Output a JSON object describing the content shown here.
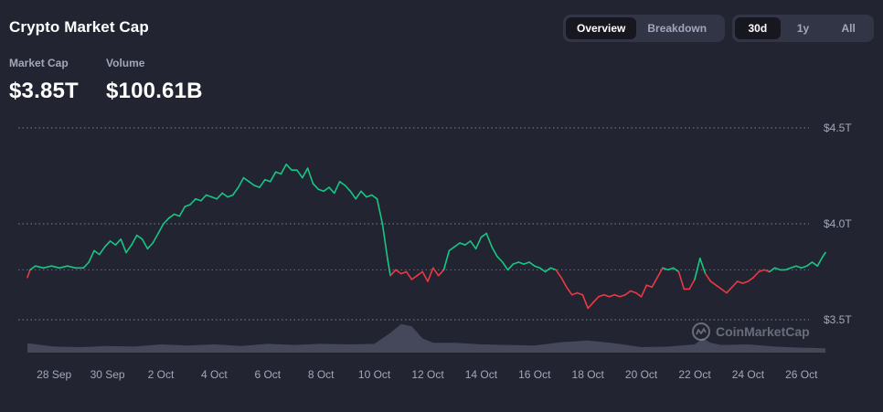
{
  "header": {
    "title": "Crypto Market Cap",
    "view_tabs": [
      {
        "label": "Overview",
        "active": true
      },
      {
        "label": "Breakdown",
        "active": false
      }
    ],
    "range_tabs": [
      {
        "label": "30d",
        "active": true
      },
      {
        "label": "1y",
        "active": false
      },
      {
        "label": "All",
        "active": false
      }
    ]
  },
  "stats": {
    "market_cap_label": "Market Cap",
    "market_cap_value": "$3.85T",
    "volume_label": "Volume",
    "volume_value": "$100.61B"
  },
  "watermark": {
    "text": "CoinMarketCap",
    "icon": "coinmarketcap-logo-icon"
  },
  "colors": {
    "background": "#222531",
    "up": "#16c784",
    "down": "#ea3943",
    "grid": "#a1a7bb",
    "axis_text": "#a1a7bb",
    "volume_fill": "#4a4f61"
  },
  "chart_data": {
    "type": "line",
    "title": "",
    "xlabel": "",
    "ylabel": "",
    "y_scale_unit": "trillion USD",
    "ylim": [
      3.5,
      4.5
    ],
    "y_ticks": [
      {
        "value": 4.5,
        "label": "$4.5T"
      },
      {
        "value": 4.0,
        "label": "$4.0T"
      },
      {
        "value": 3.5,
        "label": "$3.5T"
      }
    ],
    "x_ticks": [
      {
        "day": 1,
        "label": "28 Sep"
      },
      {
        "day": 3,
        "label": "30 Sep"
      },
      {
        "day": 5,
        "label": "2 Oct"
      },
      {
        "day": 7,
        "label": "4 Oct"
      },
      {
        "day": 9,
        "label": "6 Oct"
      },
      {
        "day": 11,
        "label": "8 Oct"
      },
      {
        "day": 13,
        "label": "10 Oct"
      },
      {
        "day": 15,
        "label": "12 Oct"
      },
      {
        "day": 17,
        "label": "14 Oct"
      },
      {
        "day": 19,
        "label": "16 Oct"
      },
      {
        "day": 21,
        "label": "18 Oct"
      },
      {
        "day": 23,
        "label": "20 Oct"
      },
      {
        "day": 25,
        "label": "22 Oct"
      },
      {
        "day": 27,
        "label": "24 Oct"
      },
      {
        "day": 29,
        "label": "26 Oct"
      }
    ],
    "x_range": [
      -0.5,
      30.0
    ],
    "baseline": 3.76,
    "grid": true,
    "series": [
      {
        "values": [
          [
            0.0,
            3.72
          ],
          [
            0.1,
            3.76
          ],
          [
            0.3,
            3.78
          ],
          [
            0.6,
            3.77
          ],
          [
            0.9,
            3.78
          ],
          [
            1.2,
            3.77
          ],
          [
            1.5,
            3.78
          ],
          [
            1.8,
            3.77
          ],
          [
            2.1,
            3.77
          ],
          [
            2.3,
            3.8
          ],
          [
            2.5,
            3.86
          ],
          [
            2.7,
            3.84
          ],
          [
            2.9,
            3.88
          ],
          [
            3.1,
            3.91
          ],
          [
            3.3,
            3.89
          ],
          [
            3.5,
            3.92
          ],
          [
            3.7,
            3.85
          ],
          [
            3.9,
            3.89
          ],
          [
            4.1,
            3.94
          ],
          [
            4.3,
            3.92
          ],
          [
            4.5,
            3.87
          ],
          [
            4.7,
            3.9
          ],
          [
            4.9,
            3.95
          ],
          [
            5.1,
            4.0
          ],
          [
            5.3,
            4.03
          ],
          [
            5.5,
            4.05
          ],
          [
            5.7,
            4.04
          ],
          [
            5.9,
            4.09
          ],
          [
            6.1,
            4.1
          ],
          [
            6.3,
            4.13
          ],
          [
            6.5,
            4.12
          ],
          [
            6.7,
            4.15
          ],
          [
            6.9,
            4.14
          ],
          [
            7.1,
            4.13
          ],
          [
            7.3,
            4.16
          ],
          [
            7.5,
            4.14
          ],
          [
            7.7,
            4.15
          ],
          [
            7.9,
            4.19
          ],
          [
            8.1,
            4.24
          ],
          [
            8.3,
            4.22
          ],
          [
            8.5,
            4.2
          ],
          [
            8.7,
            4.19
          ],
          [
            8.9,
            4.23
          ],
          [
            9.1,
            4.22
          ],
          [
            9.3,
            4.27
          ],
          [
            9.5,
            4.26
          ],
          [
            9.7,
            4.31
          ],
          [
            9.9,
            4.28
          ],
          [
            10.1,
            4.28
          ],
          [
            10.3,
            4.24
          ],
          [
            10.5,
            4.29
          ],
          [
            10.7,
            4.21
          ],
          [
            10.9,
            4.18
          ],
          [
            11.1,
            4.17
          ],
          [
            11.3,
            4.19
          ],
          [
            11.5,
            4.16
          ],
          [
            11.7,
            4.22
          ],
          [
            11.9,
            4.2
          ],
          [
            12.1,
            4.17
          ],
          [
            12.3,
            4.13
          ],
          [
            12.5,
            4.17
          ],
          [
            12.7,
            4.14
          ],
          [
            12.9,
            4.15
          ],
          [
            13.1,
            4.13
          ],
          [
            13.3,
            4.0
          ],
          [
            13.5,
            3.81
          ],
          [
            13.6,
            3.73
          ],
          [
            13.8,
            3.76
          ],
          [
            14.0,
            3.74
          ],
          [
            14.2,
            3.75
          ],
          [
            14.4,
            3.71
          ],
          [
            14.6,
            3.73
          ],
          [
            14.8,
            3.75
          ],
          [
            15.0,
            3.7
          ],
          [
            15.2,
            3.77
          ],
          [
            15.4,
            3.73
          ],
          [
            15.6,
            3.76
          ],
          [
            15.8,
            3.86
          ],
          [
            16.0,
            3.88
          ],
          [
            16.2,
            3.9
          ],
          [
            16.4,
            3.89
          ],
          [
            16.6,
            3.91
          ],
          [
            16.8,
            3.87
          ],
          [
            17.0,
            3.93
          ],
          [
            17.2,
            3.95
          ],
          [
            17.4,
            3.88
          ],
          [
            17.6,
            3.83
          ],
          [
            17.8,
            3.8
          ],
          [
            18.0,
            3.76
          ],
          [
            18.2,
            3.79
          ],
          [
            18.4,
            3.8
          ],
          [
            18.6,
            3.79
          ],
          [
            18.8,
            3.8
          ],
          [
            19.0,
            3.78
          ],
          [
            19.2,
            3.77
          ],
          [
            19.4,
            3.75
          ],
          [
            19.6,
            3.77
          ],
          [
            19.8,
            3.76
          ],
          [
            20.0,
            3.72
          ],
          [
            20.2,
            3.67
          ],
          [
            20.4,
            3.63
          ],
          [
            20.6,
            3.64
          ],
          [
            20.8,
            3.63
          ],
          [
            21.0,
            3.56
          ],
          [
            21.2,
            3.59
          ],
          [
            21.4,
            3.62
          ],
          [
            21.6,
            3.63
          ],
          [
            21.8,
            3.62
          ],
          [
            22.0,
            3.63
          ],
          [
            22.2,
            3.62
          ],
          [
            22.4,
            3.63
          ],
          [
            22.6,
            3.65
          ],
          [
            22.8,
            3.64
          ],
          [
            23.0,
            3.62
          ],
          [
            23.2,
            3.68
          ],
          [
            23.4,
            3.67
          ],
          [
            23.6,
            3.72
          ],
          [
            23.8,
            3.77
          ],
          [
            24.0,
            3.76
          ],
          [
            24.2,
            3.77
          ],
          [
            24.4,
            3.75
          ],
          [
            24.6,
            3.66
          ],
          [
            24.8,
            3.66
          ],
          [
            25.0,
            3.71
          ],
          [
            25.2,
            3.82
          ],
          [
            25.4,
            3.74
          ],
          [
            25.6,
            3.7
          ],
          [
            25.8,
            3.68
          ],
          [
            26.0,
            3.66
          ],
          [
            26.2,
            3.64
          ],
          [
            26.4,
            3.67
          ],
          [
            26.6,
            3.7
          ],
          [
            26.8,
            3.69
          ],
          [
            27.0,
            3.7
          ],
          [
            27.2,
            3.72
          ],
          [
            27.4,
            3.75
          ],
          [
            27.6,
            3.76
          ],
          [
            27.8,
            3.75
          ],
          [
            28.0,
            3.77
          ],
          [
            28.2,
            3.76
          ],
          [
            28.4,
            3.76
          ],
          [
            28.6,
            3.77
          ],
          [
            28.8,
            3.78
          ],
          [
            29.0,
            3.77
          ],
          [
            29.2,
            3.78
          ],
          [
            29.4,
            3.8
          ],
          [
            29.6,
            3.78
          ],
          [
            29.8,
            3.83
          ],
          [
            29.9,
            3.85
          ]
        ]
      }
    ],
    "volume_relative": [
      [
        0.0,
        0.85
      ],
      [
        1.0,
        0.55
      ],
      [
        2.0,
        0.5
      ],
      [
        3.0,
        0.6
      ],
      [
        4.0,
        0.55
      ],
      [
        5.0,
        0.75
      ],
      [
        6.0,
        0.65
      ],
      [
        7.0,
        0.75
      ],
      [
        8.0,
        0.6
      ],
      [
        9.0,
        0.8
      ],
      [
        10.0,
        0.7
      ],
      [
        11.0,
        0.8
      ],
      [
        12.0,
        0.75
      ],
      [
        13.0,
        0.8
      ],
      [
        13.6,
        1.8
      ],
      [
        14.0,
        2.6
      ],
      [
        14.4,
        2.4
      ],
      [
        14.8,
        1.3
      ],
      [
        15.2,
        0.9
      ],
      [
        16.0,
        0.9
      ],
      [
        17.0,
        0.75
      ],
      [
        18.0,
        0.7
      ],
      [
        19.0,
        0.65
      ],
      [
        20.0,
        0.95
      ],
      [
        21.0,
        1.1
      ],
      [
        22.0,
        0.85
      ],
      [
        23.0,
        0.5
      ],
      [
        24.0,
        0.55
      ],
      [
        25.0,
        0.75
      ],
      [
        25.3,
        1.3
      ],
      [
        25.6,
        0.9
      ],
      [
        26.0,
        0.7
      ],
      [
        27.0,
        0.75
      ],
      [
        28.0,
        0.55
      ],
      [
        29.0,
        0.45
      ],
      [
        29.9,
        0.4
      ]
    ]
  }
}
